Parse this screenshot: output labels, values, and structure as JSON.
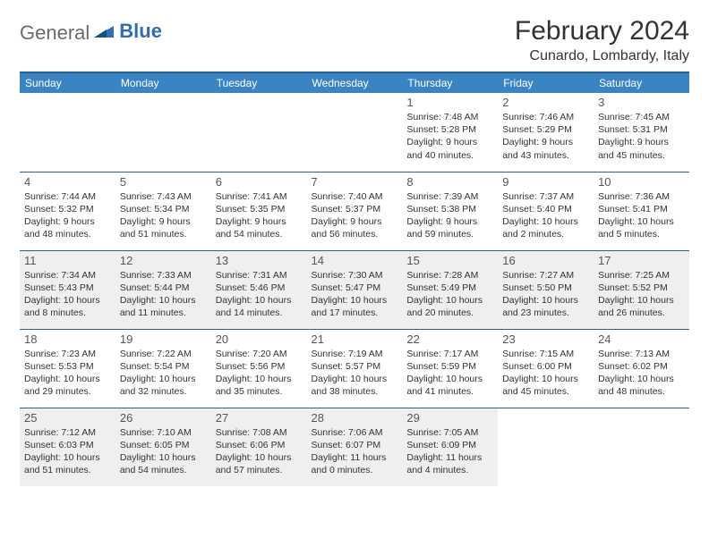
{
  "logo": {
    "general": "General",
    "blue": "Blue"
  },
  "title": "February 2024",
  "location": "Cunardo, Lombardy, Italy",
  "colors": {
    "header_bg": "#3b84c4",
    "header_border": "#2b5f8e",
    "shaded_bg": "#efefef",
    "text": "#333333",
    "logo_gray": "#6a6a6a",
    "logo_blue": "#2f6fb0"
  },
  "weekdays": [
    "Sunday",
    "Monday",
    "Tuesday",
    "Wednesday",
    "Thursday",
    "Friday",
    "Saturday"
  ],
  "weeks": [
    [
      {
        "day": "",
        "sunrise": "",
        "sunset": "",
        "daylight": "",
        "shaded": false
      },
      {
        "day": "",
        "sunrise": "",
        "sunset": "",
        "daylight": "",
        "shaded": false
      },
      {
        "day": "",
        "sunrise": "",
        "sunset": "",
        "daylight": "",
        "shaded": false
      },
      {
        "day": "",
        "sunrise": "",
        "sunset": "",
        "daylight": "",
        "shaded": false
      },
      {
        "day": "1",
        "sunrise": "Sunrise: 7:48 AM",
        "sunset": "Sunset: 5:28 PM",
        "daylight": "Daylight: 9 hours and 40 minutes.",
        "shaded": false
      },
      {
        "day": "2",
        "sunrise": "Sunrise: 7:46 AM",
        "sunset": "Sunset: 5:29 PM",
        "daylight": "Daylight: 9 hours and 43 minutes.",
        "shaded": false
      },
      {
        "day": "3",
        "sunrise": "Sunrise: 7:45 AM",
        "sunset": "Sunset: 5:31 PM",
        "daylight": "Daylight: 9 hours and 45 minutes.",
        "shaded": false
      }
    ],
    [
      {
        "day": "4",
        "sunrise": "Sunrise: 7:44 AM",
        "sunset": "Sunset: 5:32 PM",
        "daylight": "Daylight: 9 hours and 48 minutes.",
        "shaded": false
      },
      {
        "day": "5",
        "sunrise": "Sunrise: 7:43 AM",
        "sunset": "Sunset: 5:34 PM",
        "daylight": "Daylight: 9 hours and 51 minutes.",
        "shaded": false
      },
      {
        "day": "6",
        "sunrise": "Sunrise: 7:41 AM",
        "sunset": "Sunset: 5:35 PM",
        "daylight": "Daylight: 9 hours and 54 minutes.",
        "shaded": false
      },
      {
        "day": "7",
        "sunrise": "Sunrise: 7:40 AM",
        "sunset": "Sunset: 5:37 PM",
        "daylight": "Daylight: 9 hours and 56 minutes.",
        "shaded": false
      },
      {
        "day": "8",
        "sunrise": "Sunrise: 7:39 AM",
        "sunset": "Sunset: 5:38 PM",
        "daylight": "Daylight: 9 hours and 59 minutes.",
        "shaded": false
      },
      {
        "day": "9",
        "sunrise": "Sunrise: 7:37 AM",
        "sunset": "Sunset: 5:40 PM",
        "daylight": "Daylight: 10 hours and 2 minutes.",
        "shaded": false
      },
      {
        "day": "10",
        "sunrise": "Sunrise: 7:36 AM",
        "sunset": "Sunset: 5:41 PM",
        "daylight": "Daylight: 10 hours and 5 minutes.",
        "shaded": false
      }
    ],
    [
      {
        "day": "11",
        "sunrise": "Sunrise: 7:34 AM",
        "sunset": "Sunset: 5:43 PM",
        "daylight": "Daylight: 10 hours and 8 minutes.",
        "shaded": true
      },
      {
        "day": "12",
        "sunrise": "Sunrise: 7:33 AM",
        "sunset": "Sunset: 5:44 PM",
        "daylight": "Daylight: 10 hours and 11 minutes.",
        "shaded": true
      },
      {
        "day": "13",
        "sunrise": "Sunrise: 7:31 AM",
        "sunset": "Sunset: 5:46 PM",
        "daylight": "Daylight: 10 hours and 14 minutes.",
        "shaded": true
      },
      {
        "day": "14",
        "sunrise": "Sunrise: 7:30 AM",
        "sunset": "Sunset: 5:47 PM",
        "daylight": "Daylight: 10 hours and 17 minutes.",
        "shaded": true
      },
      {
        "day": "15",
        "sunrise": "Sunrise: 7:28 AM",
        "sunset": "Sunset: 5:49 PM",
        "daylight": "Daylight: 10 hours and 20 minutes.",
        "shaded": true
      },
      {
        "day": "16",
        "sunrise": "Sunrise: 7:27 AM",
        "sunset": "Sunset: 5:50 PM",
        "daylight": "Daylight: 10 hours and 23 minutes.",
        "shaded": true
      },
      {
        "day": "17",
        "sunrise": "Sunrise: 7:25 AM",
        "sunset": "Sunset: 5:52 PM",
        "daylight": "Daylight: 10 hours and 26 minutes.",
        "shaded": true
      }
    ],
    [
      {
        "day": "18",
        "sunrise": "Sunrise: 7:23 AM",
        "sunset": "Sunset: 5:53 PM",
        "daylight": "Daylight: 10 hours and 29 minutes.",
        "shaded": false
      },
      {
        "day": "19",
        "sunrise": "Sunrise: 7:22 AM",
        "sunset": "Sunset: 5:54 PM",
        "daylight": "Daylight: 10 hours and 32 minutes.",
        "shaded": false
      },
      {
        "day": "20",
        "sunrise": "Sunrise: 7:20 AM",
        "sunset": "Sunset: 5:56 PM",
        "daylight": "Daylight: 10 hours and 35 minutes.",
        "shaded": false
      },
      {
        "day": "21",
        "sunrise": "Sunrise: 7:19 AM",
        "sunset": "Sunset: 5:57 PM",
        "daylight": "Daylight: 10 hours and 38 minutes.",
        "shaded": false
      },
      {
        "day": "22",
        "sunrise": "Sunrise: 7:17 AM",
        "sunset": "Sunset: 5:59 PM",
        "daylight": "Daylight: 10 hours and 41 minutes.",
        "shaded": false
      },
      {
        "day": "23",
        "sunrise": "Sunrise: 7:15 AM",
        "sunset": "Sunset: 6:00 PM",
        "daylight": "Daylight: 10 hours and 45 minutes.",
        "shaded": false
      },
      {
        "day": "24",
        "sunrise": "Sunrise: 7:13 AM",
        "sunset": "Sunset: 6:02 PM",
        "daylight": "Daylight: 10 hours and 48 minutes.",
        "shaded": false
      }
    ],
    [
      {
        "day": "25",
        "sunrise": "Sunrise: 7:12 AM",
        "sunset": "Sunset: 6:03 PM",
        "daylight": "Daylight: 10 hours and 51 minutes.",
        "shaded": true
      },
      {
        "day": "26",
        "sunrise": "Sunrise: 7:10 AM",
        "sunset": "Sunset: 6:05 PM",
        "daylight": "Daylight: 10 hours and 54 minutes.",
        "shaded": true
      },
      {
        "day": "27",
        "sunrise": "Sunrise: 7:08 AM",
        "sunset": "Sunset: 6:06 PM",
        "daylight": "Daylight: 10 hours and 57 minutes.",
        "shaded": true
      },
      {
        "day": "28",
        "sunrise": "Sunrise: 7:06 AM",
        "sunset": "Sunset: 6:07 PM",
        "daylight": "Daylight: 11 hours and 0 minutes.",
        "shaded": true
      },
      {
        "day": "29",
        "sunrise": "Sunrise: 7:05 AM",
        "sunset": "Sunset: 6:09 PM",
        "daylight": "Daylight: 11 hours and 4 minutes.",
        "shaded": true
      },
      {
        "day": "",
        "sunrise": "",
        "sunset": "",
        "daylight": "",
        "shaded": false
      },
      {
        "day": "",
        "sunrise": "",
        "sunset": "",
        "daylight": "",
        "shaded": false
      }
    ]
  ]
}
